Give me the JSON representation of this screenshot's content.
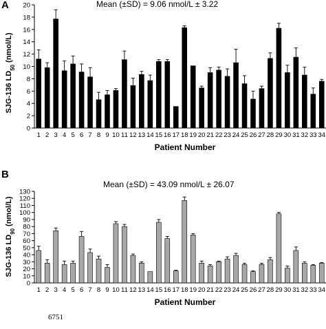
{
  "footnote": "6751",
  "chart_data": [
    {
      "type": "bar",
      "panel": "A",
      "title": "Mean (±SD) = 9.06 nmol/L ± 3.22",
      "ylabel": "SJG-136 LD50 (nmol/L)",
      "xlabel": "Patient Number",
      "ylim": [
        0,
        20
      ],
      "yticks": [
        0,
        2,
        4,
        6,
        8,
        10,
        12,
        14,
        16,
        18,
        20
      ],
      "bar_color": "#000000",
      "categories": [
        "1",
        "2",
        "3",
        "4",
        "5",
        "6",
        "7",
        "8",
        "9",
        "10",
        "11",
        "12",
        "13",
        "14",
        "15",
        "16",
        "17",
        "18",
        "19",
        "20",
        "21",
        "22",
        "23",
        "24",
        "25",
        "26",
        "27",
        "28",
        "29",
        "30",
        "31",
        "32",
        "33",
        "34"
      ],
      "values": [
        11.2,
        9.8,
        17.7,
        9.3,
        10.4,
        9.1,
        8.3,
        4.6,
        5.4,
        6.1,
        11.1,
        6.9,
        8.7,
        7.7,
        10.8,
        10.8,
        3.5,
        16.3,
        10.1,
        6.5,
        9.0,
        9.4,
        8.4,
        10.6,
        7.2,
        4.7,
        6.4,
        11.3,
        16.2,
        9.0,
        11.5,
        8.6,
        5.5,
        7.6
      ],
      "errors": [
        1.5,
        0.8,
        1.5,
        1.6,
        1.3,
        1.3,
        1.5,
        1.2,
        0.7,
        0.3,
        1.4,
        1.2,
        0.5,
        0.9,
        0.3,
        0.3,
        0.0,
        0.3,
        0.0,
        0.3,
        0.8,
        0.5,
        1.2,
        2.2,
        1.3,
        1.3,
        0.4,
        0.9,
        0.8,
        1.2,
        1.5,
        1.3,
        1.0,
        0.3
      ]
    },
    {
      "type": "bar",
      "panel": "B",
      "title": "Mean (±SD) = 43.09 nmol/L ± 26.07",
      "ylabel": "SJG-136 LD90 (nmol/L)",
      "xlabel": "Patient Number",
      "ylim": [
        0,
        130
      ],
      "yticks": [
        0,
        10,
        20,
        30,
        40,
        50,
        60,
        70,
        80,
        90,
        100,
        110,
        120,
        130
      ],
      "bar_color": "#a8a8a8",
      "categories": [
        "1",
        "2",
        "3",
        "4",
        "5",
        "6",
        "7",
        "8",
        "9",
        "10",
        "11",
        "12",
        "13",
        "14",
        "15",
        "16",
        "17",
        "18",
        "19",
        "20",
        "21",
        "22",
        "23",
        "24",
        "25",
        "26",
        "27",
        "28",
        "29",
        "30",
        "31",
        "32",
        "33",
        "34"
      ],
      "values": [
        46,
        28,
        74,
        26,
        28,
        66,
        43,
        34,
        22,
        84,
        80,
        39,
        28,
        16,
        86,
        63,
        17,
        117,
        68,
        28,
        24,
        30,
        34,
        39,
        26,
        16,
        26,
        33,
        98,
        21,
        46,
        28,
        25,
        28
      ],
      "errors": [
        6,
        5,
        4,
        5,
        3,
        7,
        5,
        4,
        4,
        3,
        3,
        2,
        2,
        0,
        4,
        3,
        1,
        5,
        2,
        3,
        2,
        1,
        3,
        3,
        2,
        1,
        2,
        3,
        2,
        3,
        5,
        2,
        1,
        1
      ]
    }
  ]
}
